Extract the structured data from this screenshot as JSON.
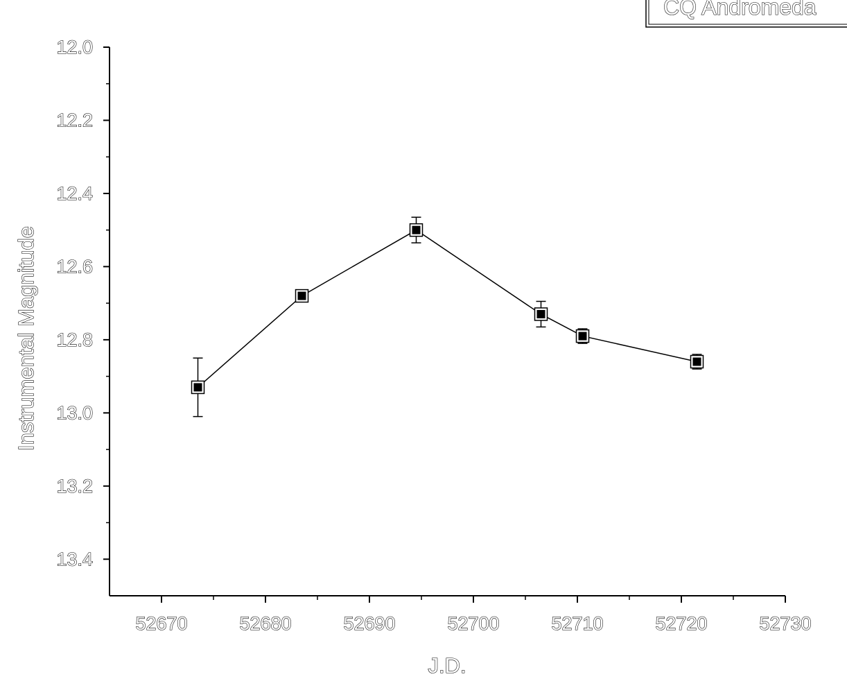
{
  "chart_data": {
    "type": "scatter",
    "x": [
      52673.5,
      52683.5,
      52694.5,
      52706.5,
      52710.5,
      52721.5
    ],
    "y": [
      12.93,
      12.68,
      12.5,
      12.73,
      12.79,
      12.86
    ],
    "y_error": [
      0.08,
      0.015,
      0.035,
      0.035,
      0.02,
      0.02
    ],
    "connected": true,
    "marker": "filled-square",
    "xlabel": "J.D.",
    "ylabel": "Instrumental Magnitude",
    "legend": "CQ Andromeda",
    "legend_position": "top-right",
    "xlim": [
      52665,
      52730
    ],
    "ylim": [
      12.0,
      13.5
    ],
    "y_inverted": true,
    "x_ticks": [
      52670,
      52680,
      52690,
      52700,
      52710,
      52720,
      52730
    ],
    "x_tick_labels": [
      "52670",
      "52680",
      "52690",
      "52700",
      "52710",
      "52720",
      "52730"
    ],
    "y_ticks": [
      12.0,
      12.2,
      12.4,
      12.6,
      12.8,
      13.0,
      13.2,
      13.4
    ],
    "y_tick_labels": [
      "12.0",
      "12.2",
      "12.4",
      "12.6",
      "12.8",
      "13.0",
      "13.2",
      "13.4"
    ],
    "grid": false,
    "line_color": "#000000",
    "marker_color": "#000000"
  }
}
